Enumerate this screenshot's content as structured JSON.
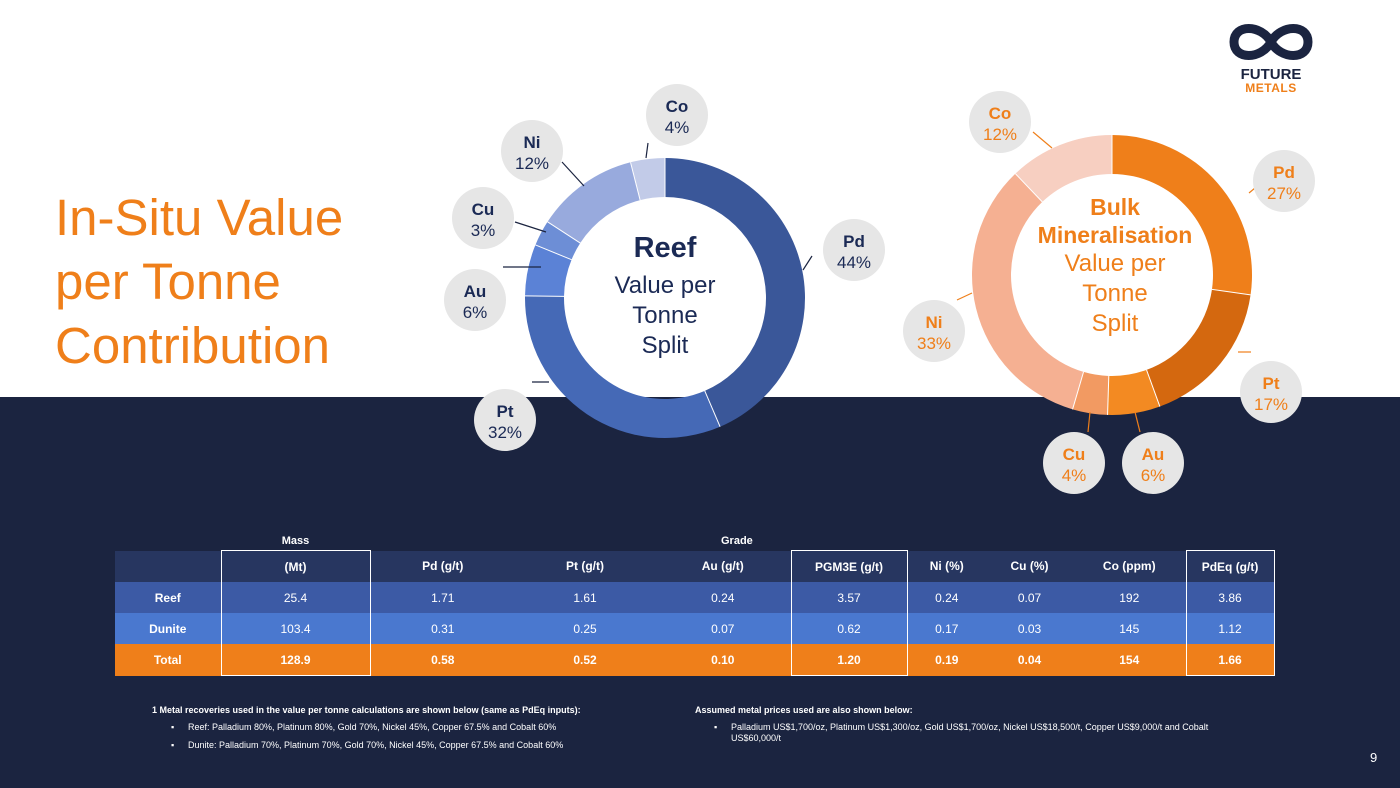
{
  "slide": {
    "title": "In-Situ Value\nper Tonne\nContribution",
    "page_number": "9",
    "logo": {
      "word1": "FUTURE",
      "word2": "METALS"
    }
  },
  "chart_data": [
    {
      "type": "pie",
      "variant": "donut",
      "title": "Reef Value per Tonne Split",
      "center_bold": "Reef",
      "center_lines": [
        "Value per",
        "Tonne",
        "Split"
      ],
      "categories": [
        "Pd",
        "Pt",
        "Au",
        "Cu",
        "Ni",
        "Co"
      ],
      "values": [
        44,
        32,
        6,
        3,
        12,
        4
      ],
      "labels": [
        "44%",
        "32%",
        "6%",
        "3%",
        "12%",
        "4%"
      ],
      "colors": [
        "#3a5799",
        "#4569b6",
        "#5b82d6",
        "#6d8ed6",
        "#98aadd",
        "#c2cbe8"
      ],
      "text_color": "#1b2a55"
    },
    {
      "type": "pie",
      "variant": "donut",
      "title": "Bulk Mineralisation Value per Tonne Split",
      "center_bold": "Bulk\nMineralisation",
      "center_lines": [
        "Value per",
        "Tonne",
        "Split"
      ],
      "categories": [
        "Pd",
        "Pt",
        "Au",
        "Cu",
        "Ni",
        "Co"
      ],
      "values": [
        27,
        17,
        6,
        4,
        33,
        12
      ],
      "labels": [
        "27%",
        "17%",
        "6%",
        "4%",
        "33%",
        "12%"
      ],
      "colors": [
        "#ef7f1a",
        "#d4680f",
        "#f38a22",
        "#f29a62",
        "#f5b092",
        "#f7cfc1"
      ],
      "text_color": "#ef7f1a"
    },
    {
      "type": "table",
      "group_headers": {
        "mass": "Mass",
        "grade": "Grade"
      },
      "columns": [
        "",
        "(Mt)",
        "Pd (g/t)",
        "Pt (g/t)",
        "Au (g/t)",
        "PGM3E (g/t)",
        "Ni (%)",
        "Cu (%)",
        "Co (ppm)",
        "PdEq (g/t)"
      ],
      "rows": [
        {
          "label": "Reef",
          "values": [
            "25.4",
            "1.71",
            "1.61",
            "0.24",
            "3.57",
            "0.24",
            "0.07",
            "192",
            "3.86"
          ]
        },
        {
          "label": "Dunite",
          "values": [
            "103.4",
            "0.31",
            "0.25",
            "0.07",
            "0.62",
            "0.17",
            "0.03",
            "145",
            "1.12"
          ]
        },
        {
          "label": "Total",
          "values": [
            "128.9",
            "0.58",
            "0.52",
            "0.10",
            "1.20",
            "0.19",
            "0.04",
            "154",
            "1.66"
          ]
        }
      ]
    }
  ],
  "footnotes": {
    "left": {
      "title": "1 Metal recoveries used in the value per tonne calculations are shown below (same as PdEq inputs):",
      "items": [
        "Reef: Palladium 80%, Platinum 80%, Gold 70%, Nickel 45%, Copper 67.5% and Cobalt 60%",
        "Dunite: Palladium 70%, Platinum 70%, Gold 70%, Nickel 45%, Copper 67.5% and Cobalt 60%"
      ]
    },
    "right": {
      "title": "Assumed metal prices used are also shown below:",
      "items": [
        "Palladium US$1,700/oz, Platinum US$1,300/oz, Gold US$1,700/oz, Nickel US$18,500/t, Copper US$9,000/t and Cobalt US$60,000/t"
      ]
    },
    "bullet": "▪"
  }
}
